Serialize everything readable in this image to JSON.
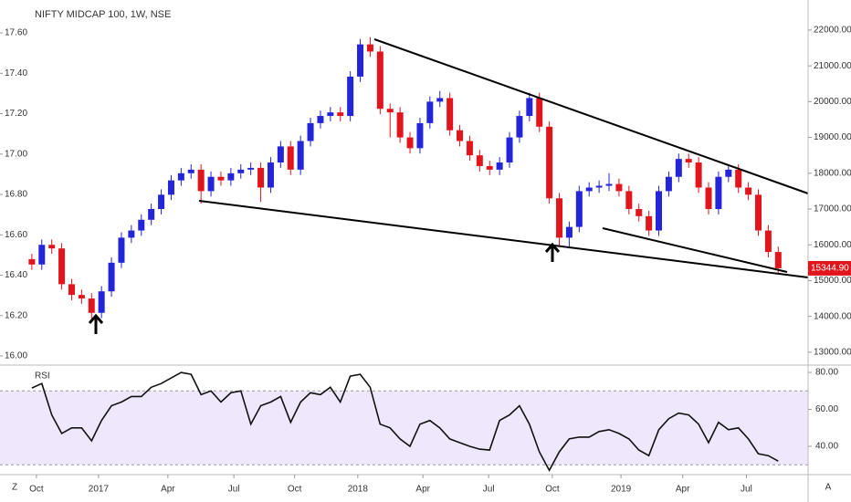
{
  "chart_data": {
    "type": "candlestick",
    "title": "NIFTY MIDCAP 100, 1W, NSE",
    "up_color": "#2424d8",
    "down_color": "#e3151c",
    "open": [
      15600,
      15450,
      16000,
      15900,
      14900,
      14600,
      14500,
      14100,
      14700,
      15500,
      16200,
      16400,
      16700,
      17000,
      17400,
      17800,
      18000,
      18100,
      17500,
      17900,
      17800,
      18000,
      18100,
      18150,
      17600,
      18300,
      18750,
      18100,
      18900,
      19400,
      19600,
      19700,
      19600,
      20700,
      21600,
      21400,
      19800,
      19700,
      19000,
      18700,
      19400,
      20000,
      20100,
      19200,
      18900,
      18500,
      18200,
      18100,
      18300,
      19000,
      19600,
      20100,
      19300,
      17300,
      16200,
      16500,
      17500,
      17600,
      17650,
      17700,
      17500,
      17000,
      16800,
      16400,
      17500,
      17900,
      18400,
      18300,
      17600,
      17000,
      17900,
      18100,
      17600,
      17400,
      16400,
      15800
    ],
    "high": [
      15750,
      16150,
      16150,
      16050,
      15050,
      14750,
      14650,
      14850,
      15650,
      16350,
      16550,
      16850,
      17150,
      17550,
      17950,
      18150,
      18250,
      18250,
      18050,
      18050,
      18150,
      18250,
      18300,
      18300,
      18450,
      18900,
      18900,
      19050,
      19550,
      19750,
      19850,
      19850,
      20850,
      21750,
      21800,
      21550,
      19950,
      19850,
      19150,
      19550,
      20150,
      20300,
      20250,
      19350,
      19050,
      18650,
      18350,
      18450,
      19150,
      19750,
      20250,
      20250,
      19450,
      17450,
      16650,
      17650,
      17750,
      17800,
      18000,
      17850,
      17650,
      17150,
      16950,
      17650,
      18050,
      18550,
      18550,
      18450,
      17750,
      18050,
      18250,
      18250,
      17750,
      17550,
      16550,
      15950
    ],
    "low": [
      15300,
      15300,
      15750,
      14750,
      14450,
      14350,
      13900,
      13950,
      14550,
      15350,
      16050,
      16250,
      16550,
      16850,
      17250,
      17650,
      17850,
      17150,
      17350,
      17650,
      17650,
      17850,
      17950,
      17200,
      17450,
      18150,
      17950,
      17950,
      18750,
      19250,
      19450,
      19450,
      19450,
      20550,
      21250,
      19650,
      19000,
      18850,
      18550,
      18550,
      19250,
      19850,
      19050,
      18750,
      18350,
      18050,
      17950,
      17950,
      18150,
      18850,
      19450,
      19150,
      17150,
      15950,
      15900,
      16350,
      17350,
      17450,
      17500,
      17350,
      16850,
      16650,
      16250,
      16250,
      17350,
      17750,
      18150,
      17450,
      16850,
      16850,
      17750,
      17450,
      17250,
      16250,
      15650,
      15200
    ],
    "close": [
      15450,
      16000,
      15900,
      14900,
      14600,
      14500,
      14100,
      14700,
      15500,
      16200,
      16400,
      16700,
      17000,
      17400,
      17800,
      18000,
      18100,
      17500,
      17900,
      17800,
      18000,
      18100,
      18150,
      17600,
      18300,
      18750,
      18100,
      18900,
      19400,
      19600,
      19700,
      19600,
      20700,
      21600,
      21400,
      19800,
      19700,
      19000,
      18700,
      19400,
      20000,
      20100,
      19200,
      18900,
      18500,
      18200,
      18100,
      18300,
      19000,
      19600,
      20100,
      19300,
      17300,
      16200,
      16500,
      17500,
      17600,
      17650,
      17700,
      17500,
      17000,
      16800,
      16400,
      17500,
      17900,
      18400,
      18300,
      17600,
      17000,
      17900,
      18100,
      17600,
      17400,
      16400,
      15800,
      15344.9
    ],
    "last_price": {
      "value": 15344.9,
      "label": "15344.90"
    },
    "xlim": [
      -3.2,
      78
    ],
    "xticks": [
      {
        "value": 0.46,
        "label": "Oct"
      },
      {
        "value": 6.7,
        "label": "2017"
      },
      {
        "value": 13.67,
        "label": "Apr"
      },
      {
        "value": 20.3,
        "label": "Jul"
      },
      {
        "value": 26.4,
        "label": "Oct"
      },
      {
        "value": 32.75,
        "label": "2018"
      },
      {
        "value": 39.3,
        "label": "Apr"
      },
      {
        "value": 45.9,
        "label": "Jul"
      },
      {
        "value": 52.3,
        "label": "Oct"
      },
      {
        "value": 59.2,
        "label": "2019"
      },
      {
        "value": 65.4,
        "label": "Apr"
      },
      {
        "value": 71.8,
        "label": "Jul"
      }
    ],
    "ylim": [
      12640,
      22840
    ],
    "yticks": [
      {
        "value": 13000,
        "label": "13000.00"
      },
      {
        "value": 14000,
        "label": "14000.00"
      },
      {
        "value": 15000,
        "label": "15000.00"
      },
      {
        "value": 16000,
        "label": "16000.00"
      },
      {
        "value": 17000,
        "label": "17000.00"
      },
      {
        "value": 18000,
        "label": "18000.00"
      },
      {
        "value": 19000,
        "label": "19000.00"
      },
      {
        "value": 20000,
        "label": "20000.00"
      },
      {
        "value": 21000,
        "label": "21000.00"
      },
      {
        "value": 22000,
        "label": "22000.00"
      }
    ],
    "y2lim": [
      15.955,
      17.763
    ],
    "y2ticks": [
      {
        "value": 16,
        "label": "16.00"
      },
      {
        "value": 16.2,
        "label": "16.20"
      },
      {
        "value": 16.4,
        "label": "16.40"
      },
      {
        "value": 16.6,
        "label": "16.60"
      },
      {
        "value": 16.8,
        "label": "16.80"
      },
      {
        "value": 17,
        "label": "17.00"
      },
      {
        "value": 17.2,
        "label": "17.20"
      },
      {
        "value": 17.4,
        "label": "17.40"
      },
      {
        "value": 17.6,
        "label": "17.60"
      }
    ],
    "indicator": {
      "name": "RSI",
      "type": "line",
      "color": "#111111",
      "band_color": "#efe8fd",
      "bands": [
        30,
        70
      ],
      "ylim": [
        24.7,
        83
      ],
      "yticks": [
        {
          "value": 40,
          "label": "40.00"
        },
        {
          "value": 60,
          "label": "60.00"
        },
        {
          "value": 80,
          "label": "80.00"
        }
      ],
      "values": [
        71.6,
        74,
        57,
        47,
        50,
        50,
        43,
        54,
        62,
        64,
        67,
        67,
        72,
        74,
        77,
        80,
        79,
        68,
        70,
        64,
        69,
        70,
        52,
        62,
        64,
        67,
        53,
        64,
        69,
        68,
        72,
        64,
        78,
        79,
        72,
        52,
        50,
        44,
        40,
        52,
        54,
        50,
        44,
        42,
        40,
        38.5,
        38,
        54,
        57,
        62,
        52,
        37,
        27,
        37,
        44,
        45,
        45,
        48,
        49,
        47,
        44,
        38,
        35,
        49,
        55,
        58,
        57,
        52,
        42,
        53,
        49,
        50,
        44,
        36,
        35,
        32
      ]
    }
  },
  "toolbar": {
    "left": "Z",
    "right": "A"
  }
}
